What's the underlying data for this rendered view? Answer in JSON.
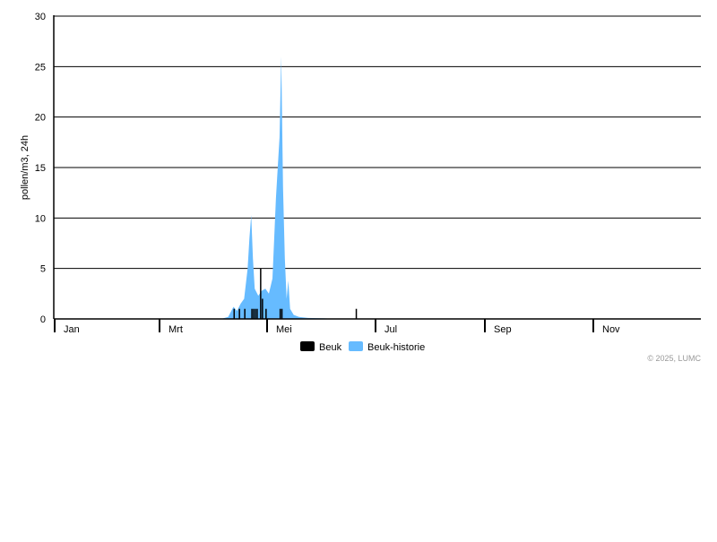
{
  "chart_data": {
    "type": "bar+area",
    "ylabel": "pollen/m3, 24h",
    "xlabel": "",
    "year": 2025,
    "ylim": [
      0,
      30
    ],
    "yticks": [
      0,
      5,
      10,
      15,
      20,
      25,
      30
    ],
    "grid": true,
    "xtick_labels": [
      {
        "label": "Jan",
        "month": 1
      },
      {
        "label": "Mrt",
        "month": 3
      },
      {
        "label": "Mei",
        "month": 5
      },
      {
        "label": "Jul",
        "month": 7
      },
      {
        "label": "Sep",
        "month": 9
      },
      {
        "label": "Nov",
        "month": 11
      }
    ],
    "legend_position": "bottom",
    "series": [
      {
        "name": "Beuk",
        "type": "bar",
        "color": "#000000",
        "points": [
          [
            "2025-04-12",
            1
          ],
          [
            "2025-04-15",
            1
          ],
          [
            "2025-04-18",
            1
          ],
          [
            "2025-04-22",
            1
          ],
          [
            "2025-04-23",
            1
          ],
          [
            "2025-04-24",
            1
          ],
          [
            "2025-04-25",
            1
          ],
          [
            "2025-04-27",
            5
          ],
          [
            "2025-04-28",
            2
          ],
          [
            "2025-04-30",
            1
          ],
          [
            "2025-05-08",
            1
          ],
          [
            "2025-05-09",
            1
          ],
          [
            "2025-06-20",
            1
          ]
        ]
      },
      {
        "name": "Beuk-historie",
        "type": "area",
        "color": "#66bbff",
        "points": [
          [
            "2025-04-05",
            0
          ],
          [
            "2025-04-09",
            0.2
          ],
          [
            "2025-04-12",
            1.2
          ],
          [
            "2025-04-14",
            0.8
          ],
          [
            "2025-04-16",
            1.5
          ],
          [
            "2025-04-18",
            2
          ],
          [
            "2025-04-20",
            5
          ],
          [
            "2025-04-21",
            8
          ],
          [
            "2025-04-22",
            10.3
          ],
          [
            "2025-04-23",
            6
          ],
          [
            "2025-04-24",
            3
          ],
          [
            "2025-04-26",
            2.3
          ],
          [
            "2025-04-28",
            2.8
          ],
          [
            "2025-04-30",
            3
          ],
          [
            "2025-05-02",
            2.5
          ],
          [
            "2025-05-04",
            4
          ],
          [
            "2025-05-06",
            12
          ],
          [
            "2025-05-08",
            18
          ],
          [
            "2025-05-09",
            26
          ],
          [
            "2025-05-10",
            13
          ],
          [
            "2025-05-11",
            6
          ],
          [
            "2025-05-12",
            2
          ],
          [
            "2025-05-13",
            3.8
          ],
          [
            "2025-05-14",
            1
          ],
          [
            "2025-05-16",
            0.4
          ],
          [
            "2025-05-19",
            0.2
          ],
          [
            "2025-05-24",
            0.1
          ],
          [
            "2025-06-03",
            0.05
          ],
          [
            "2025-06-08",
            0
          ]
        ]
      }
    ],
    "credit": "© 2025, LUMC"
  }
}
